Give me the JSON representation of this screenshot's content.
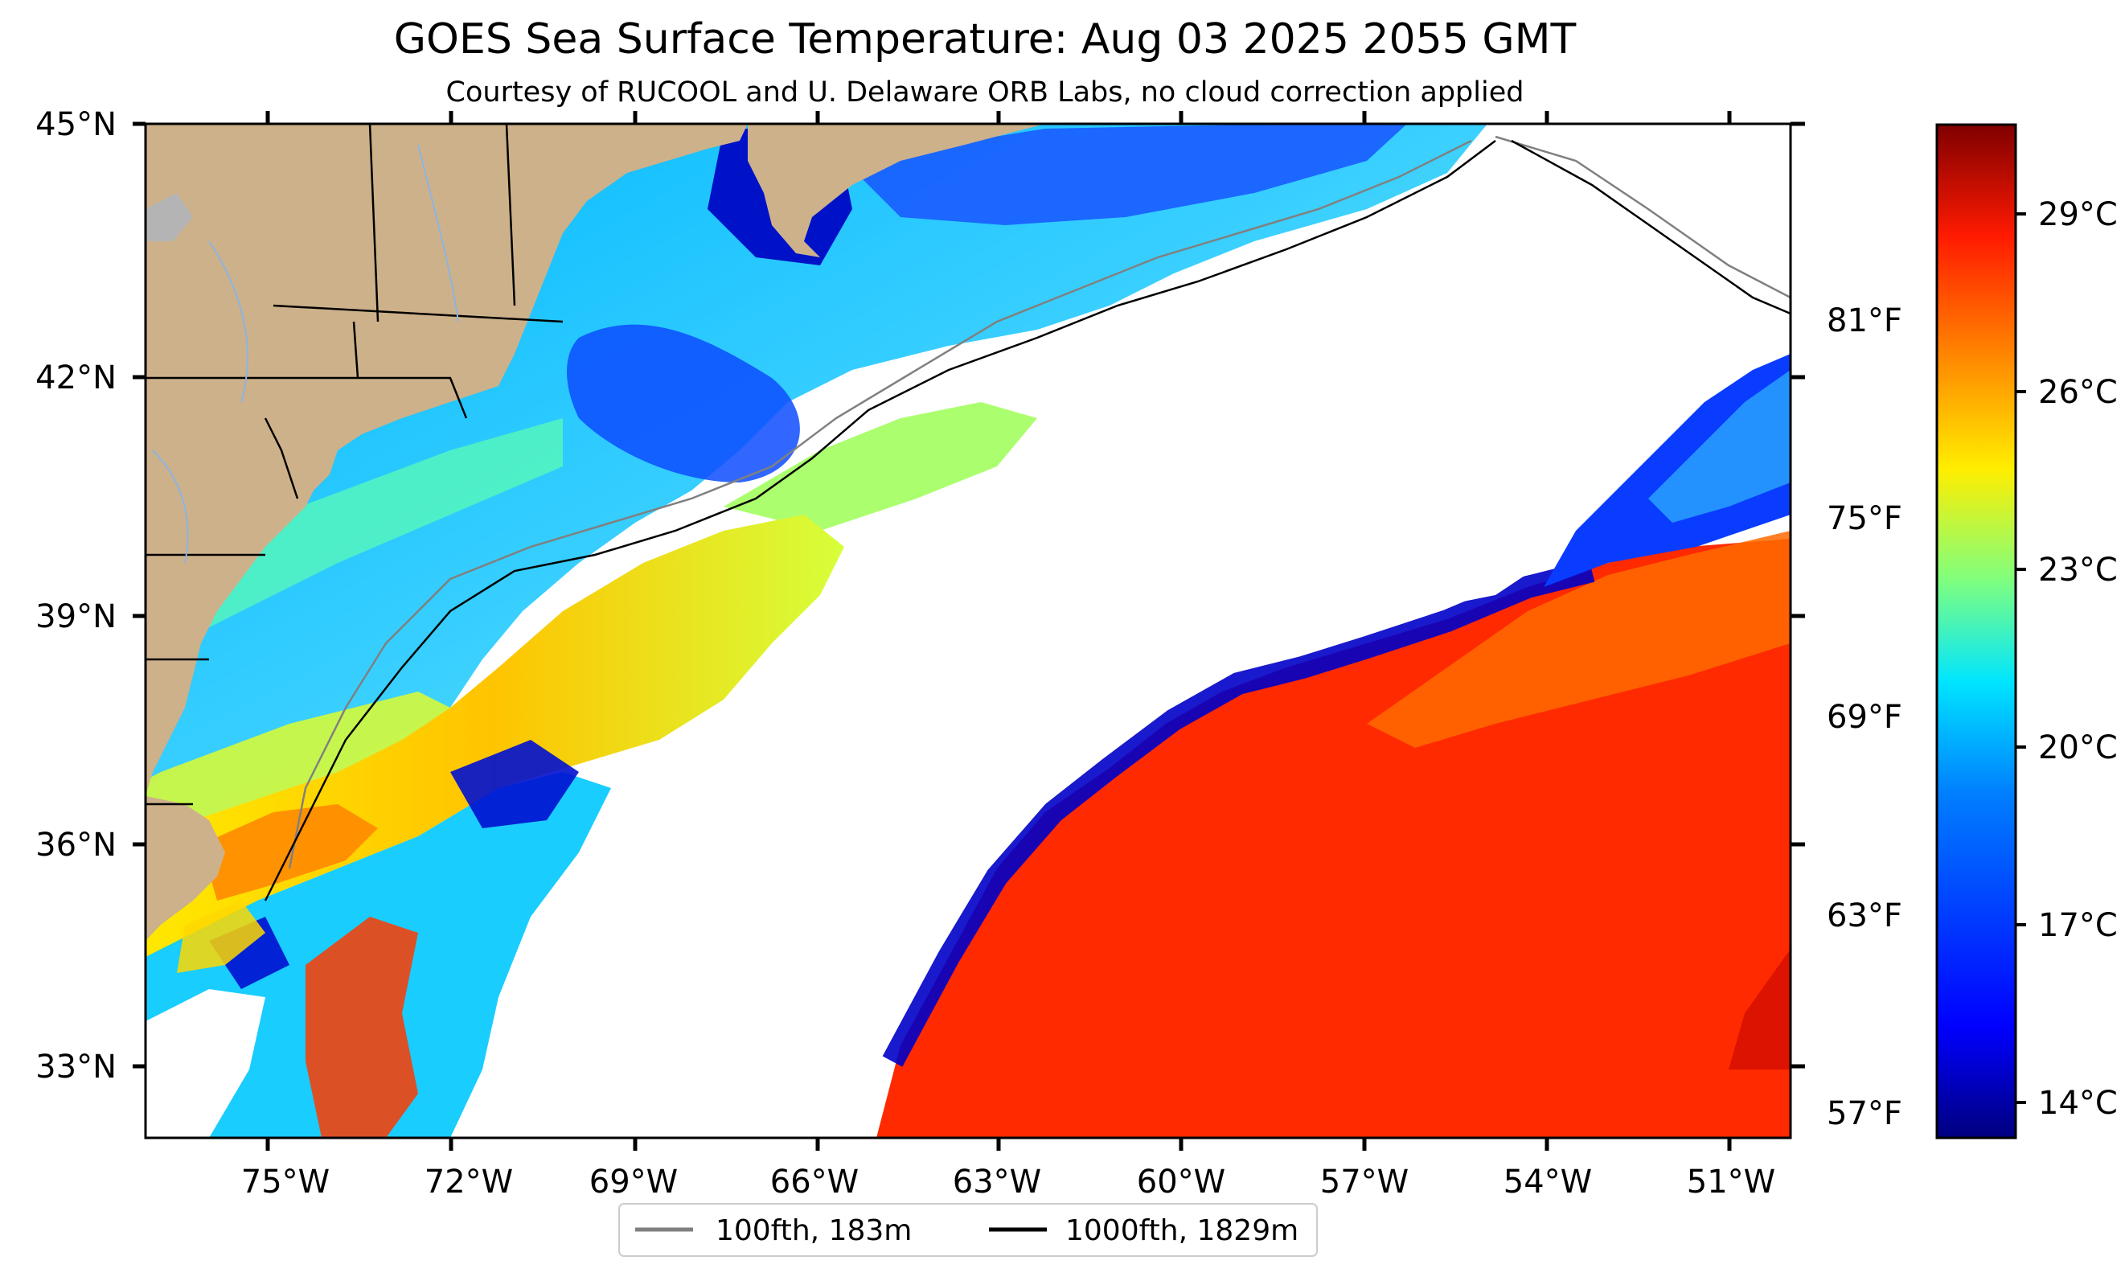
{
  "title": "GOES Sea Surface Temperature: Aug 03 2025 2055 GMT",
  "subtitle": "Courtesy of RUCOOL and U. Delaware ORB Labs, no cloud correction applied",
  "lat_labels": [
    "45°N",
    "42°N",
    "39°N",
    "36°N",
    "33°N"
  ],
  "lon_labels": [
    "75°W",
    "72°W",
    "69°W",
    "66°W",
    "63°W",
    "60°W",
    "57°W",
    "54°W",
    "51°W"
  ],
  "colorbar": {
    "fahrenheit_labels": [
      "81°F",
      "75°F",
      "69°F",
      "63°F",
      "57°F"
    ],
    "celsius_labels": [
      "29°C",
      "26°C",
      "23°C",
      "20°C",
      "17°C",
      "14°C"
    ],
    "colormap": "jet",
    "colors": [
      "#00007f",
      "#0000ff",
      "#007fff",
      "#00e5ff",
      "#7fff7f",
      "#ffee00",
      "#ff7f00",
      "#ff1a00",
      "#7f0000"
    ]
  },
  "legend": [
    {
      "label": "100fth, 183m",
      "color": "#808080"
    },
    {
      "label": "1000fth, 1829m",
      "color": "#000000"
    }
  ],
  "land_color": "#cdb18a",
  "lake_color": "#b4b4b4"
}
